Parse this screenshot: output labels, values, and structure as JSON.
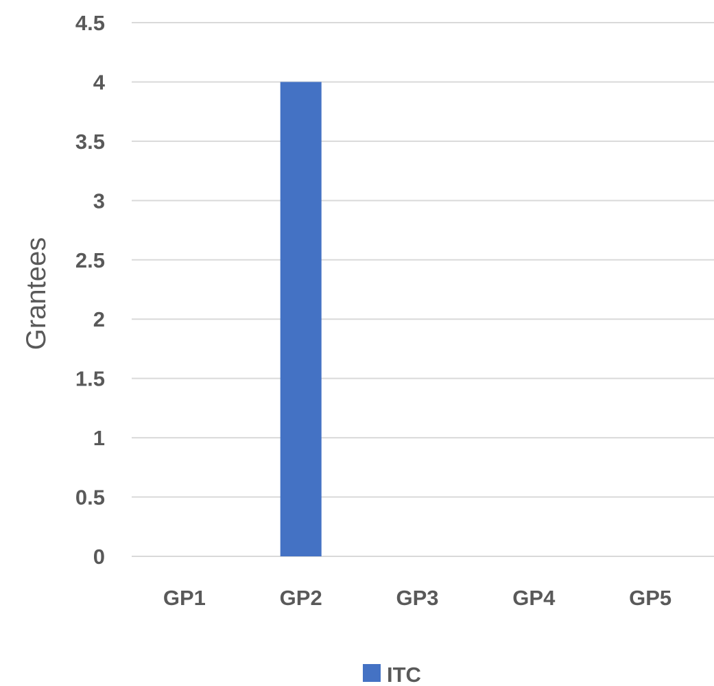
{
  "chart_data": {
    "type": "bar",
    "categories": [
      "GP1",
      "GP2",
      "GP3",
      "GP4",
      "GP5"
    ],
    "series": [
      {
        "name": "ITC",
        "values": [
          0,
          4,
          0,
          0,
          0
        ],
        "color": "#4472C4"
      }
    ],
    "ylabel": "Grantees",
    "ylim": [
      0,
      4.5
    ],
    "yticks": [
      "0",
      "0.5",
      "1",
      "1.5",
      "2",
      "2.5",
      "3",
      "3.5",
      "4",
      "4.5"
    ],
    "grid": true,
    "legend": "bottom",
    "colors": {
      "grid": "#d9d9d9",
      "text": "#595959"
    }
  }
}
